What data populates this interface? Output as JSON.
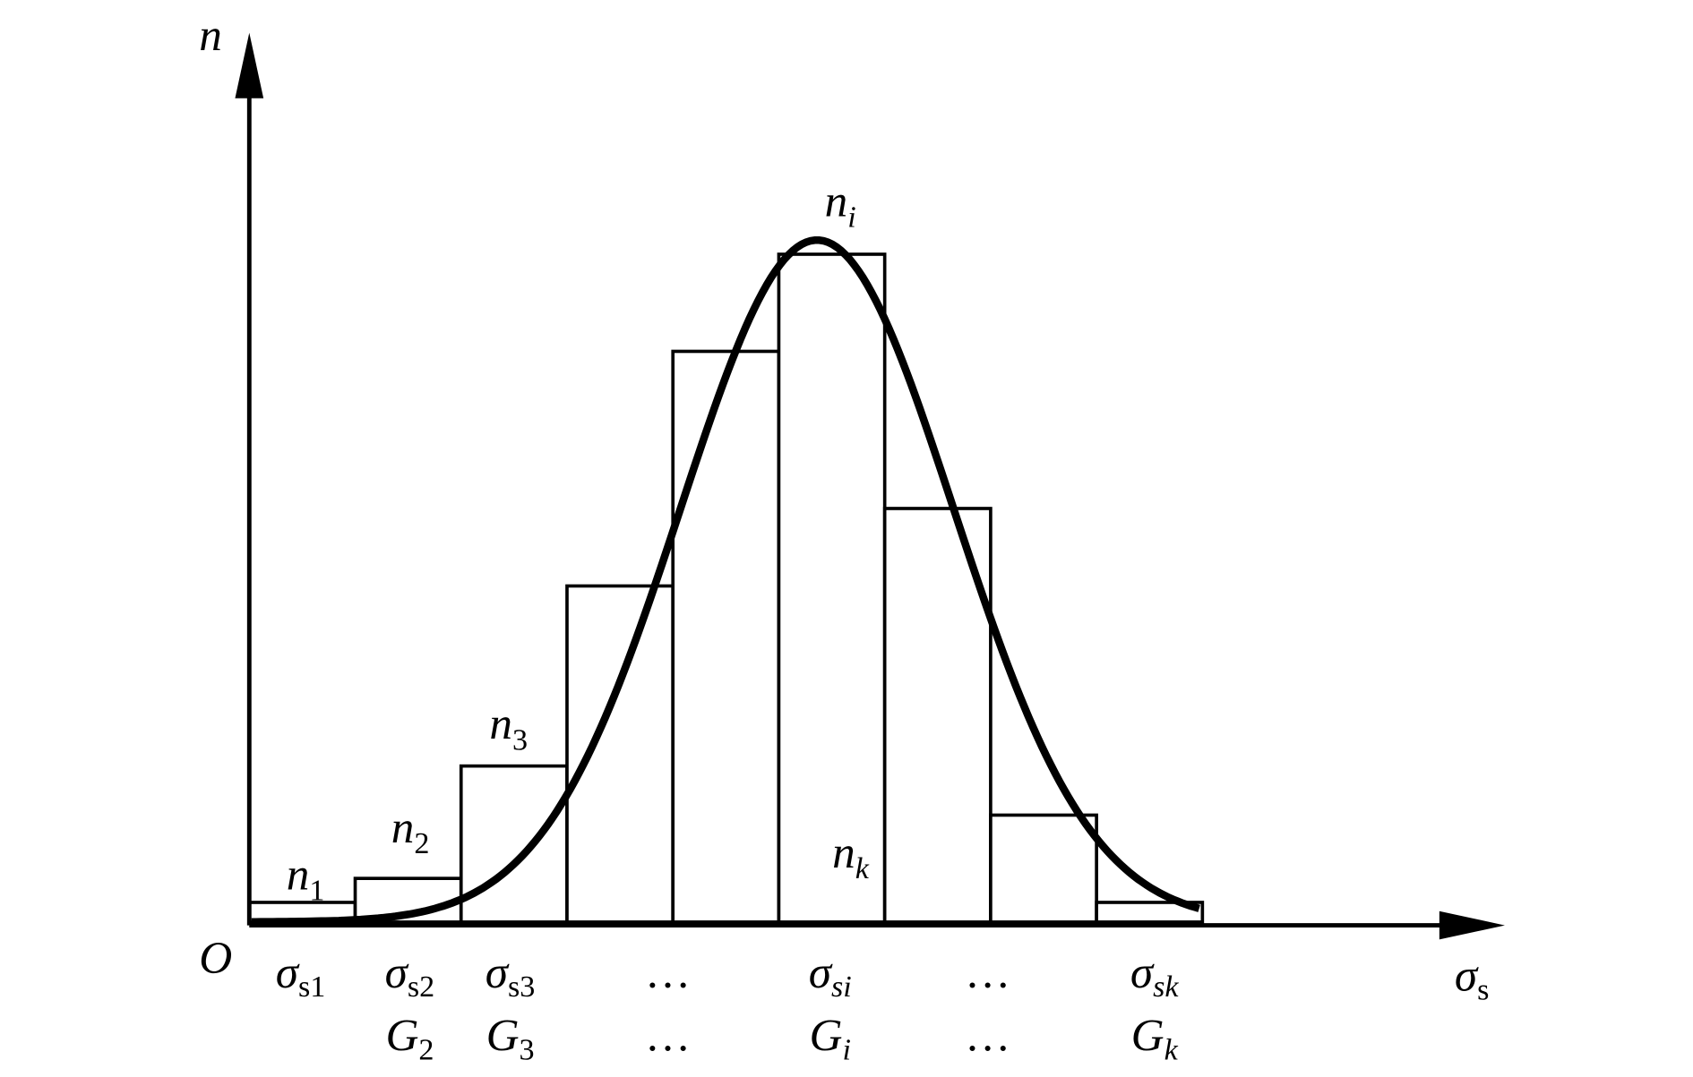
{
  "axes": {
    "y_label": "n",
    "origin": "O",
    "x_label": {
      "main": "σ",
      "sub": "s"
    }
  },
  "count_labels": [
    {
      "main": "n",
      "sub": "1"
    },
    {
      "main": "n",
      "sub": "2"
    },
    {
      "main": "n",
      "sub": "3"
    },
    {
      "main": "n",
      "sub": "i"
    },
    {
      "main": "n",
      "sub": "k"
    }
  ],
  "stress_labels": [
    {
      "main": "σ",
      "sub": "s1"
    },
    {
      "main": "σ",
      "sub": "s2"
    },
    {
      "main": "σ",
      "sub": "s3"
    },
    {
      "main": "…"
    },
    {
      "main": "σ",
      "sub": "si"
    },
    {
      "main": "…"
    },
    {
      "main": "σ",
      "sub": "sk"
    }
  ],
  "group_labels": [
    {
      "main": "G",
      "sub": "2"
    },
    {
      "main": "G",
      "sub": "3"
    },
    {
      "main": "…"
    },
    {
      "main": "G",
      "sub": "i"
    },
    {
      "main": "…"
    },
    {
      "main": "G",
      "sub": "k"
    }
  ]
}
